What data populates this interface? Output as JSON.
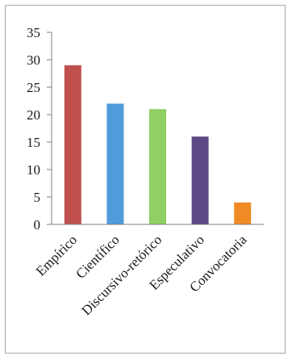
{
  "chart_data": {
    "type": "bar",
    "title": "",
    "xlabel": "",
    "ylabel": "",
    "categories": [
      "Empírico",
      "Científico",
      "Discursivo-retórico",
      "Especulativo",
      "Convocatoria"
    ],
    "values": [
      29,
      22,
      21,
      16,
      4
    ],
    "colors": [
      "#c0504d",
      "#4f9bdc",
      "#8fcf63",
      "#5b4a86",
      "#f08a24"
    ],
    "ylim": [
      0,
      35
    ],
    "yticks": [
      0,
      5,
      10,
      15,
      20,
      25,
      30,
      35
    ],
    "grid": false,
    "legend": "none"
  }
}
